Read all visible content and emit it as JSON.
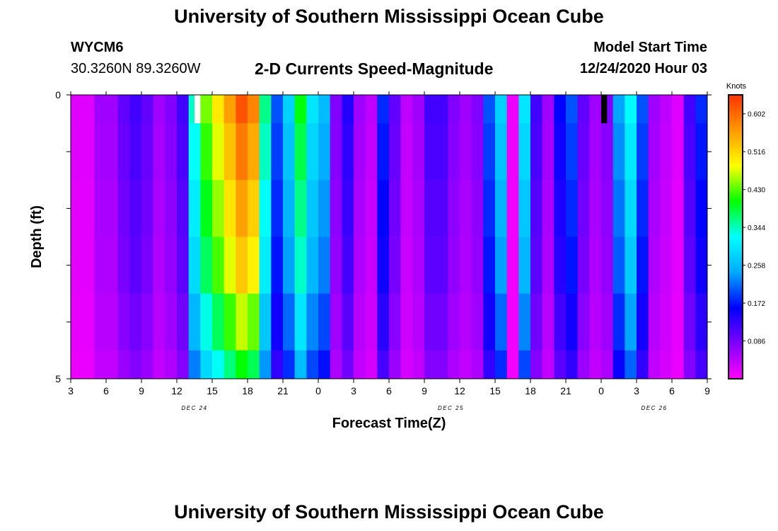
{
  "page": {
    "title": "University of Southern Mississippi Ocean Cube",
    "station_id": "WYCM6",
    "coordinates": "30.3260N 89.3260W",
    "subtitle": "2-D Currents Speed-Magnitude",
    "model_start_label": "Model Start Time",
    "model_start_value": "12/24/2020 Hour 03",
    "footer_title": "University of Southern Mississippi Ocean Cube"
  },
  "chart_data": {
    "type": "heatmap",
    "title": "2-D Currents Speed-Magnitude",
    "xlabel": "Forecast Time(Z)",
    "ylabel": "Depth (ft)",
    "x_tick_labels": [
      "3",
      "6",
      "9",
      "12",
      "15",
      "18",
      "21",
      "0",
      "3",
      "6",
      "9",
      "12",
      "15",
      "18",
      "21",
      "0",
      "3",
      "6",
      "9"
    ],
    "x_hours_step": 3,
    "day_labels": [
      {
        "label": "DEC 24",
        "tick_index": 3.5
      },
      {
        "label": "DEC 25",
        "tick_index": 10.75
      },
      {
        "label": "DEC 26",
        "tick_index": 16.5
      }
    ],
    "y_tick_labels": [
      "0",
      "5"
    ],
    "ylim": [
      0,
      5
    ],
    "depth_bins": [
      0,
      0.5,
      1.5,
      2.5,
      3.5,
      4.5,
      5.0
    ],
    "time_steps_per_hour": 1,
    "start_hour": 3,
    "hours": 54,
    "colorbar": {
      "unit": "Knots",
      "min": 0.0,
      "max": 0.645,
      "tick_labels": [
        "0.602",
        "0.516",
        "0.430",
        "0.344",
        "0.258",
        "0.172",
        "0.086"
      ],
      "tick_values": [
        0.602,
        0.516,
        0.43,
        0.344,
        0.258,
        0.172,
        0.086
      ],
      "colors": [
        "#ff00ff",
        "#8000ff",
        "#0000ff",
        "#00aaff",
        "#00ffff",
        "#00ff00",
        "#ffff00",
        "#ff9900",
        "#ff3300"
      ]
    },
    "speed_by_hour": [
      0.02,
      0.02,
      0.06,
      0.06,
      0.1,
      0.12,
      0.1,
      0.06,
      0.08,
      0.12,
      0.34,
      0.44,
      0.5,
      0.56,
      0.62,
      0.58,
      0.36,
      0.2,
      0.28,
      0.4,
      0.3,
      0.26,
      0.08,
      0.14,
      0.06,
      0.04,
      0.18,
      0.1,
      0.04,
      0.06,
      0.12,
      0.12,
      0.08,
      0.06,
      0.08,
      0.2,
      0.28,
      0.01,
      0.3,
      0.12,
      0.06,
      0.16,
      0.2,
      0.1,
      0.06,
      0.08,
      0.24,
      0.32,
      0.2,
      0.06,
      0.04,
      0.02,
      0.12,
      0.18
    ],
    "depth_factor": [
      1.0,
      0.95,
      0.9,
      0.85,
      0.75,
      0.65
    ],
    "missing_cells": [
      {
        "hour_index": 10.5,
        "depth_bin": 0,
        "color": "#ffffff"
      },
      {
        "hour_index": 45,
        "depth_bin": 0,
        "color": "#000000"
      }
    ]
  }
}
